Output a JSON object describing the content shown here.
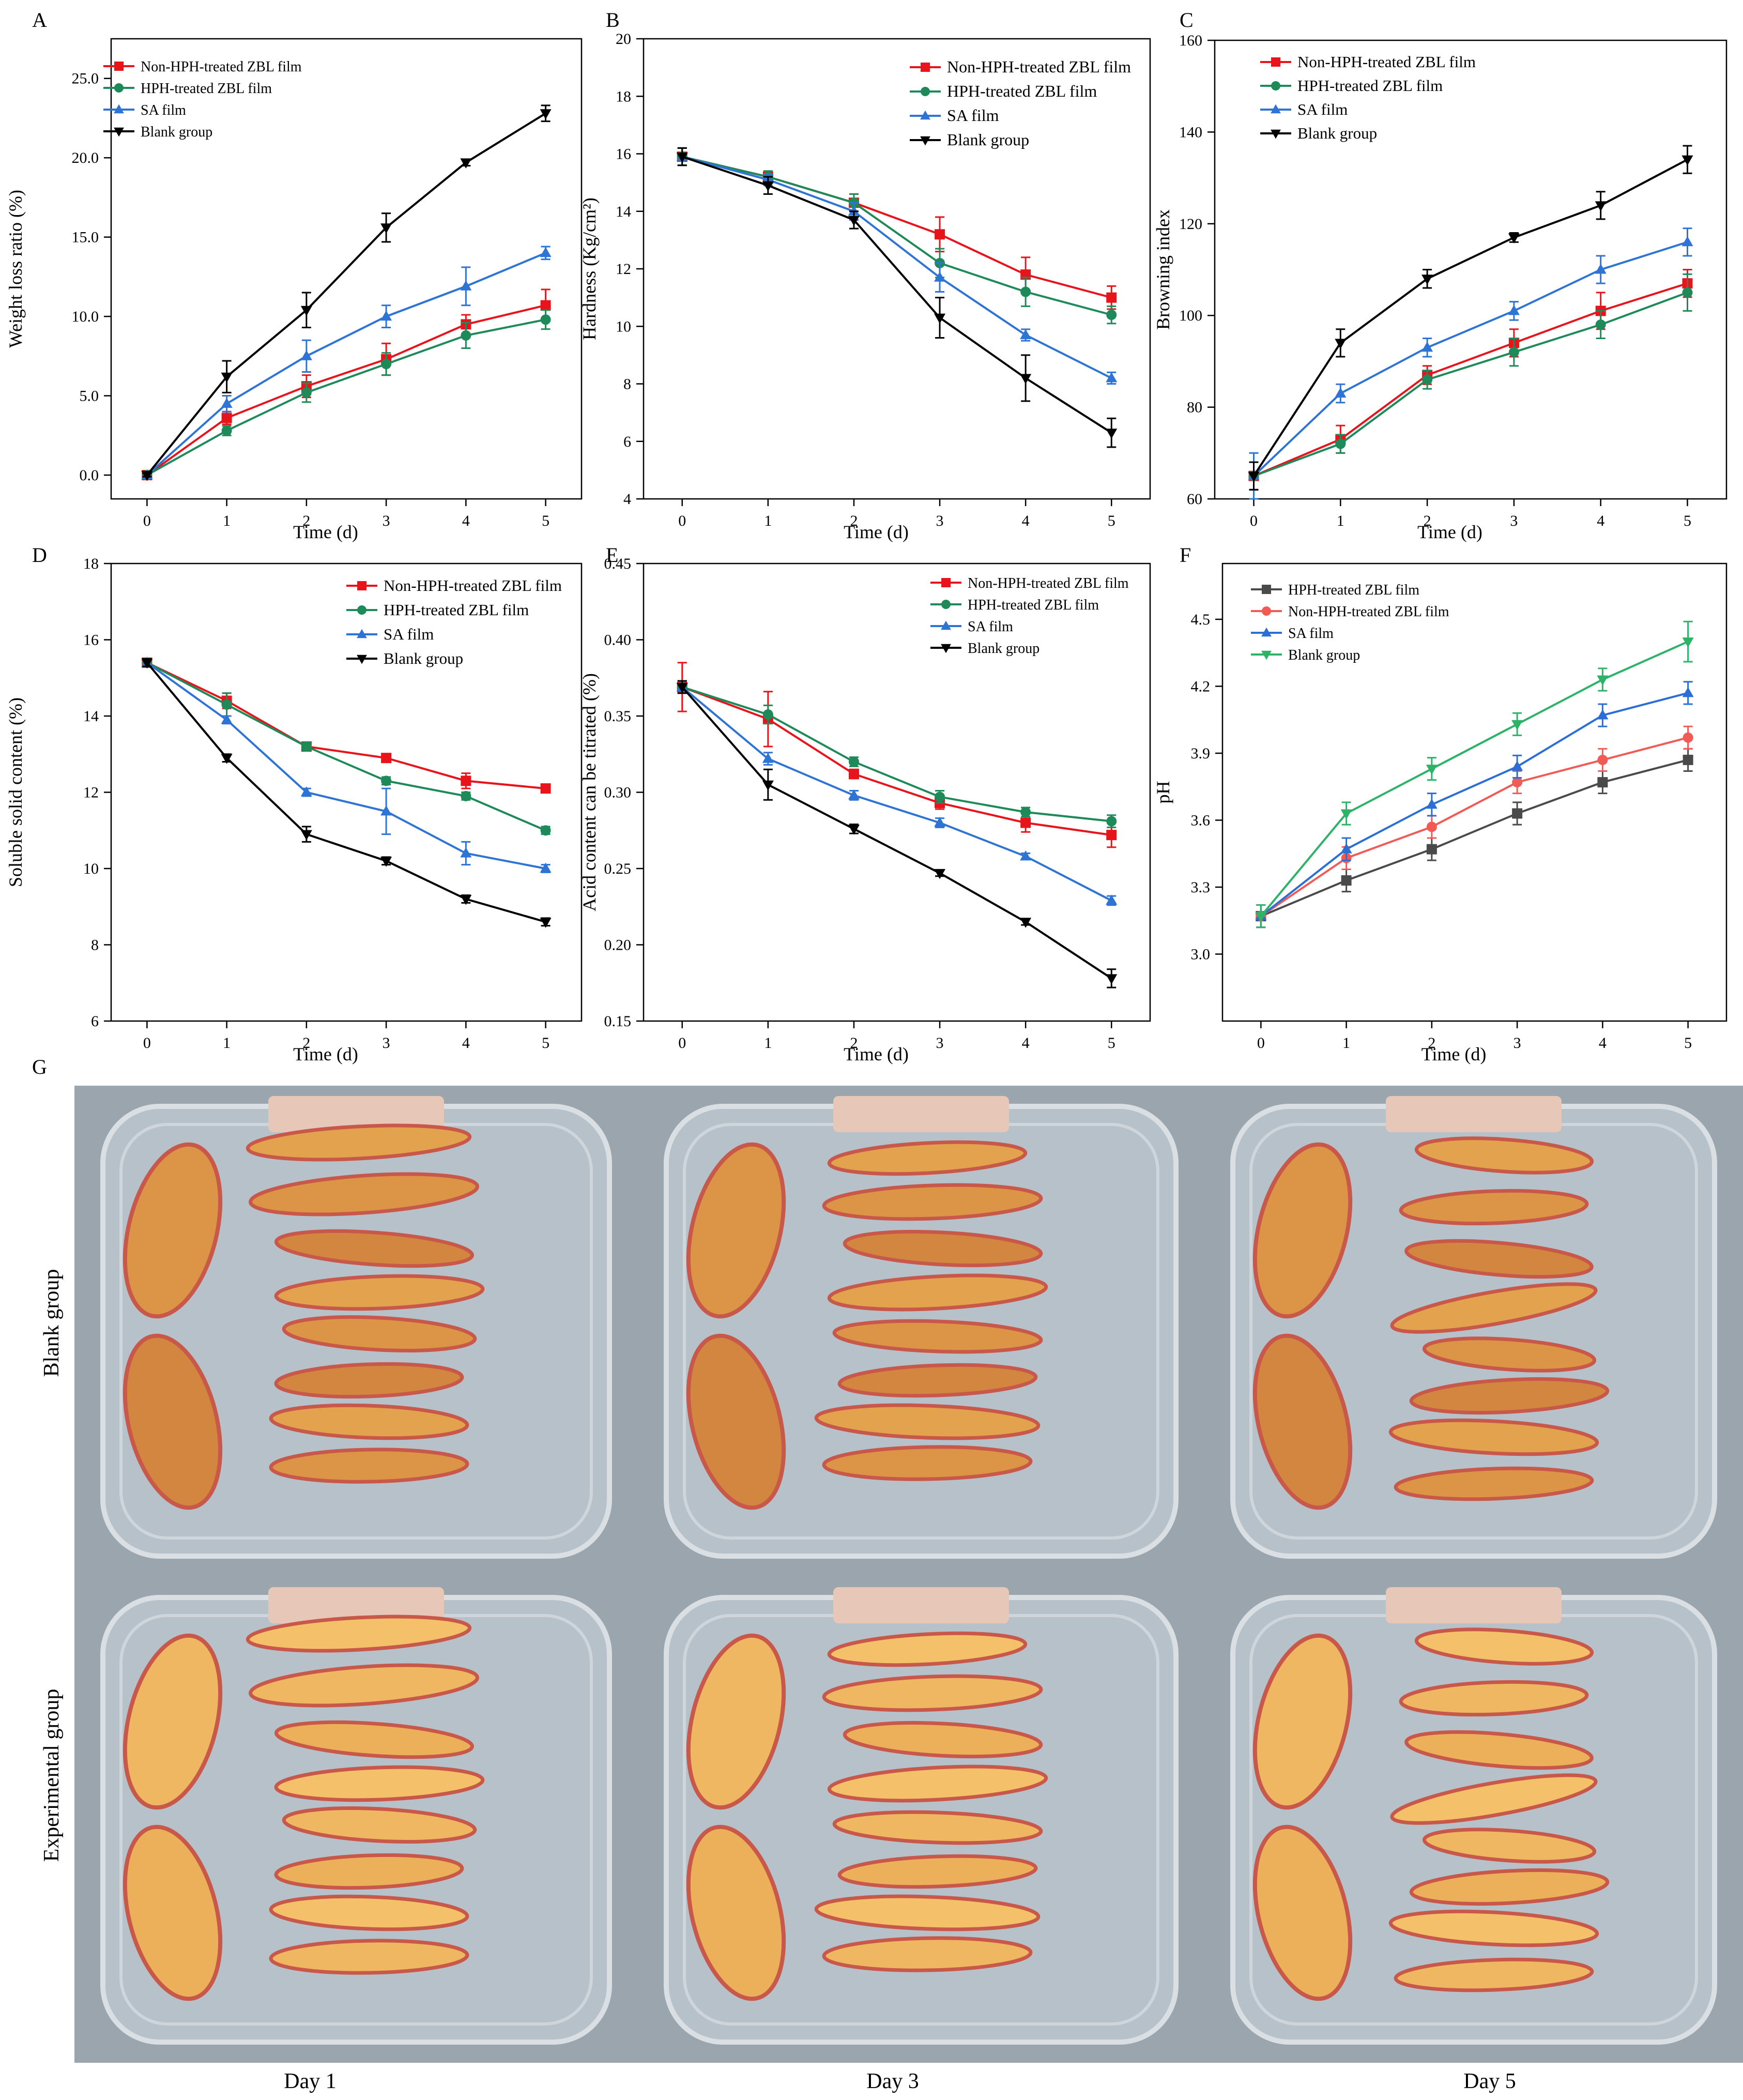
{
  "chart_data": [
    {
      "panel": "A",
      "type": "line",
      "xlabel": "Time (d)",
      "ylabel": "Weight loss ratio (%)",
      "x": [
        0,
        1,
        2,
        3,
        4,
        5
      ],
      "ylim": [
        -1.5,
        27.5
      ],
      "yticks": [
        "0.0",
        "5.0",
        "10.0",
        "15.0",
        "20.0",
        "25.0"
      ],
      "ytick_values": [
        0,
        5,
        10,
        15,
        20,
        25
      ],
      "legend_position": "top-left",
      "series": [
        {
          "name": "Non-HPH-treated ZBL film",
          "color": "#e8141c",
          "marker": "square",
          "values": [
            0,
            3.6,
            5.6,
            7.3,
            9.5,
            10.7
          ],
          "errors": [
            0.1,
            0.4,
            0.7,
            1.0,
            0.6,
            1.0
          ]
        },
        {
          "name": "HPH-treated ZBL film",
          "color": "#1e8a5a",
          "marker": "circle",
          "values": [
            0,
            2.8,
            5.2,
            7.0,
            8.8,
            9.8
          ],
          "errors": [
            0.1,
            0.3,
            0.6,
            0.7,
            0.8,
            0.6
          ]
        },
        {
          "name": "SA film",
          "color": "#2e74d4",
          "marker": "triangle-up",
          "values": [
            0,
            4.5,
            7.5,
            10.0,
            11.9,
            14.0
          ],
          "errors": [
            0.1,
            0.5,
            1.0,
            0.7,
            1.2,
            0.4
          ]
        },
        {
          "name": "Blank group",
          "color": "#000000",
          "marker": "triangle-down",
          "values": [
            0,
            6.2,
            10.4,
            15.6,
            19.7,
            22.8
          ],
          "errors": [
            0.1,
            1.0,
            1.1,
            0.9,
            0.2,
            0.5
          ]
        }
      ]
    },
    {
      "panel": "B",
      "type": "line",
      "xlabel": "Time (d)",
      "ylabel": "Hardness (Kg/cm²)",
      "x": [
        0,
        1,
        2,
        3,
        4,
        5
      ],
      "ylim": [
        4,
        20
      ],
      "yticks": [
        "4",
        "6",
        "8",
        "10",
        "12",
        "14",
        "16",
        "18",
        "20"
      ],
      "ytick_values": [
        4,
        6,
        8,
        10,
        12,
        14,
        16,
        18,
        20
      ],
      "legend_position": "top-right",
      "series": [
        {
          "name": "Non-HPH-treated ZBL film",
          "color": "#e8141c",
          "marker": "square",
          "values": [
            15.9,
            15.2,
            14.3,
            13.2,
            11.8,
            11.0
          ],
          "errors": [
            0.3,
            0.2,
            0.3,
            0.6,
            0.6,
            0.4
          ]
        },
        {
          "name": "HPH-treated ZBL film",
          "color": "#1e8a5a",
          "marker": "circle",
          "values": [
            15.9,
            15.2,
            14.3,
            12.2,
            11.2,
            10.4
          ],
          "errors": [
            0.3,
            0.2,
            0.3,
            0.5,
            0.5,
            0.3
          ]
        },
        {
          "name": "SA film",
          "color": "#2e74d4",
          "marker": "triangle-up",
          "values": [
            15.9,
            15.1,
            14.0,
            11.7,
            9.7,
            8.2
          ],
          "errors": [
            0.3,
            0.2,
            0.3,
            0.5,
            0.2,
            0.2
          ]
        },
        {
          "name": "Blank group",
          "color": "#000000",
          "marker": "triangle-down",
          "values": [
            15.9,
            14.9,
            13.7,
            10.3,
            8.2,
            6.3
          ],
          "errors": [
            0.3,
            0.3,
            0.3,
            0.7,
            0.8,
            0.5
          ]
        }
      ]
    },
    {
      "panel": "C",
      "type": "line",
      "xlabel": "Time (d)",
      "ylabel": "Browning index",
      "x": [
        0,
        1,
        2,
        3,
        4,
        5
      ],
      "ylim": [
        60,
        160
      ],
      "yticks": [
        "60",
        "80",
        "100",
        "120",
        "140",
        "160"
      ],
      "ytick_values": [
        60,
        80,
        100,
        120,
        140,
        160
      ],
      "legend_position": "top-left",
      "series": [
        {
          "name": "Non-HPH-treated ZBL film",
          "color": "#e8141c",
          "marker": "square",
          "values": [
            65,
            73,
            87,
            94,
            101,
            107
          ],
          "errors": [
            3,
            3,
            2,
            3,
            4,
            3
          ]
        },
        {
          "name": "HPH-treated ZBL film",
          "color": "#1e8a5a",
          "marker": "circle",
          "values": [
            65,
            72,
            86,
            92,
            98,
            105
          ],
          "errors": [
            3,
            2,
            2,
            3,
            3,
            4
          ]
        },
        {
          "name": "SA film",
          "color": "#2e74d4",
          "marker": "triangle-up",
          "values": [
            65,
            83,
            93,
            101,
            110,
            116
          ],
          "errors": [
            5,
            2,
            2,
            2,
            3,
            3
          ]
        },
        {
          "name": "Blank group",
          "color": "#000000",
          "marker": "triangle-down",
          "values": [
            65,
            94,
            108,
            117,
            124,
            134
          ],
          "errors": [
            3,
            3,
            2,
            1,
            3,
            3
          ]
        }
      ]
    },
    {
      "panel": "D",
      "type": "line",
      "xlabel": "Time (d)",
      "ylabel": "Soluble solid content (%)",
      "x": [
        0,
        1,
        2,
        3,
        4,
        5
      ],
      "ylim": [
        6,
        18
      ],
      "yticks": [
        "6",
        "8",
        "10",
        "12",
        "14",
        "16",
        "18"
      ],
      "ytick_values": [
        6,
        8,
        10,
        12,
        14,
        16,
        18
      ],
      "legend_position": "top-right",
      "series": [
        {
          "name": "Non-HPH-treated ZBL film",
          "color": "#e8141c",
          "marker": "square",
          "values": [
            15.4,
            14.4,
            13.2,
            12.9,
            12.3,
            12.1
          ],
          "errors": [
            0.1,
            0.2,
            0.1,
            0.1,
            0.2,
            0.1
          ]
        },
        {
          "name": "HPH-treated ZBL film",
          "color": "#1e8a5a",
          "marker": "circle",
          "values": [
            15.4,
            14.3,
            13.2,
            12.3,
            11.9,
            11.0
          ],
          "errors": [
            0.1,
            0.3,
            0.1,
            0.1,
            0.1,
            0.1
          ]
        },
        {
          "name": "SA film",
          "color": "#2e74d4",
          "marker": "triangle-up",
          "values": [
            15.4,
            13.9,
            12.0,
            11.5,
            10.4,
            10.0
          ],
          "errors": [
            0.1,
            0.1,
            0.1,
            0.6,
            0.3,
            0.1
          ]
        },
        {
          "name": "Blank group",
          "color": "#000000",
          "marker": "triangle-down",
          "values": [
            15.4,
            12.9,
            10.9,
            10.2,
            9.2,
            8.6
          ],
          "errors": [
            0.1,
            0.1,
            0.2,
            0.1,
            0.1,
            0.1
          ]
        }
      ]
    },
    {
      "panel": "E",
      "type": "line",
      "xlabel": "Time (d)",
      "ylabel": "Acid content can be titrated (%)",
      "x": [
        0,
        1,
        2,
        3,
        4,
        5
      ],
      "ylim": [
        0.15,
        0.45
      ],
      "yticks": [
        "0.15",
        "0.20",
        "0.25",
        "0.30",
        "0.35",
        "0.40",
        "0.45"
      ],
      "ytick_values": [
        0.15,
        0.2,
        0.25,
        0.3,
        0.35,
        0.4,
        0.45
      ],
      "legend_position": "top-right",
      "series": [
        {
          "name": "Non-HPH-treated ZBL film",
          "color": "#e8141c",
          "marker": "square",
          "values": [
            0.369,
            0.348,
            0.312,
            0.293,
            0.28,
            0.272
          ],
          "errors": [
            0.016,
            0.018,
            0.003,
            0.004,
            0.006,
            0.008
          ]
        },
        {
          "name": "HPH-treated ZBL film",
          "color": "#1e8a5a",
          "marker": "circle",
          "values": [
            0.369,
            0.351,
            0.32,
            0.297,
            0.287,
            0.281
          ],
          "errors": [
            0.004,
            0.006,
            0.003,
            0.004,
            0.003,
            0.004
          ]
        },
        {
          "name": "SA film",
          "color": "#2e74d4",
          "marker": "triangle-up",
          "values": [
            0.369,
            0.322,
            0.298,
            0.28,
            0.258,
            0.229
          ],
          "errors": [
            0.004,
            0.004,
            0.003,
            0.003,
            0.002,
            0.003
          ]
        },
        {
          "name": "Blank group",
          "color": "#000000",
          "marker": "triangle-down",
          "values": [
            0.369,
            0.305,
            0.276,
            0.247,
            0.215,
            0.178
          ],
          "errors": [
            0.004,
            0.01,
            0.003,
            0.002,
            0.002,
            0.006
          ]
        }
      ]
    },
    {
      "panel": "F",
      "type": "line",
      "xlabel": "Time (d)",
      "ylabel": "pH",
      "x": [
        0,
        1,
        2,
        3,
        4,
        5
      ],
      "ylim": [
        2.7,
        4.75
      ],
      "yticks": [
        "3.0",
        "3.3",
        "3.6",
        "3.9",
        "4.2",
        "4.5"
      ],
      "ytick_values": [
        3.0,
        3.3,
        3.6,
        3.9,
        4.2,
        4.5
      ],
      "legend_position": "top-left",
      "series": [
        {
          "name": "HPH-treated ZBL film",
          "color": "#4a4a4a",
          "marker": "square",
          "values": [
            3.17,
            3.33,
            3.47,
            3.63,
            3.77,
            3.87
          ],
          "errors": [
            0.05,
            0.05,
            0.05,
            0.05,
            0.05,
            0.05
          ]
        },
        {
          "name": "Non-HPH-treated ZBL film",
          "color": "#f25a55",
          "marker": "circle",
          "values": [
            3.17,
            3.43,
            3.57,
            3.77,
            3.87,
            3.97
          ],
          "errors": [
            0.05,
            0.05,
            0.05,
            0.05,
            0.05,
            0.05
          ]
        },
        {
          "name": "SA film",
          "color": "#2b6fd6",
          "marker": "triangle-up",
          "values": [
            3.17,
            3.47,
            3.67,
            3.84,
            4.07,
            4.17
          ],
          "errors": [
            0.05,
            0.05,
            0.05,
            0.05,
            0.05,
            0.05
          ]
        },
        {
          "name": "Blank group",
          "color": "#2db368",
          "marker": "triangle-down",
          "values": [
            3.17,
            3.63,
            3.83,
            4.03,
            4.23,
            4.4
          ],
          "errors": [
            0.05,
            0.05,
            0.05,
            0.05,
            0.05,
            0.09
          ]
        }
      ]
    }
  ],
  "photos": {
    "panel": "G",
    "rows": [
      "Blank group",
      "Experimental group"
    ],
    "columns": [
      "Day 1",
      "Day 3",
      "Day 5"
    ],
    "tray_color": "#b7c1c9",
    "background_color": "#9aa5ad",
    "fruit_colors": {
      "Blank group": [
        "#e2a24e",
        "#dc9446",
        "#d28640"
      ],
      "Experimental group": [
        "#f4c06a",
        "#efb762",
        "#ecaf5a"
      ]
    }
  }
}
